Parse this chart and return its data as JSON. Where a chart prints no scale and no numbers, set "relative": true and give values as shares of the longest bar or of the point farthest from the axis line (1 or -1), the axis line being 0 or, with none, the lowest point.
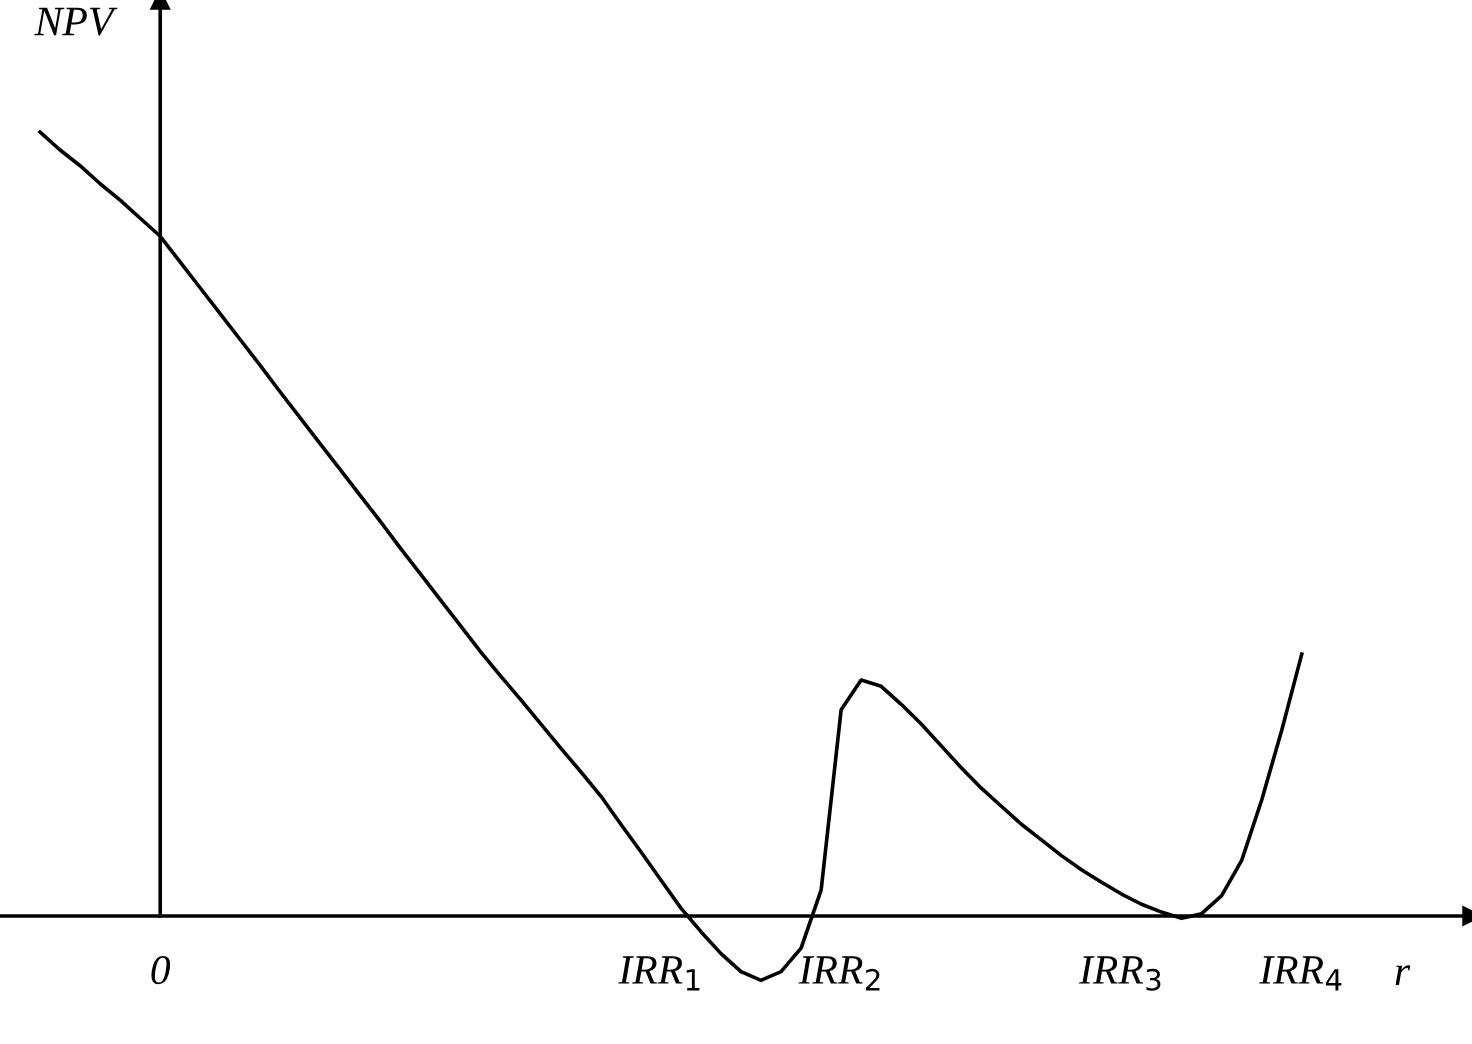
{
  "chart_data": {
    "type": "line",
    "relative": true,
    "xlabel": "r",
    "ylabel": "NPV",
    "color": "#000000",
    "line_style": "solid",
    "categories": [
      null,
      null,
      null,
      null,
      null,
      null,
      "0",
      null,
      null,
      null,
      null,
      null,
      null,
      null,
      null,
      null,
      null,
      null,
      null,
      null,
      null,
      null,
      null,
      null,
      null,
      null,
      null,
      null,
      null,
      null,
      null,
      "IRR$_{1}$",
      null,
      null,
      null,
      null,
      null,
      null,
      null,
      null,
      "IRR$_{2}$",
      null,
      null,
      null,
      null,
      null,
      null,
      null,
      null,
      null,
      null,
      null,
      null,
      null,
      "IRR$_{3}$",
      null,
      null,
      null,
      null,
      null,
      null,
      null,
      null,
      "IRR$_{4}$"
    ],
    "values": [
      1,
      0.977,
      0.957,
      0.934,
      0.913,
      0.89,
      0.867,
      0.834,
      0.801,
      0.768,
      0.735,
      0.702,
      0.668,
      0.635,
      0.602,
      0.569,
      0.536,
      0.503,
      0.469,
      0.436,
      0.403,
      0.37,
      0.337,
      0.306,
      0.276,
      0.245,
      0.214,
      0.184,
      0.153,
      0.117,
      0.082,
      0.046,
      0.01,
      -0.02,
      -0.048,
      -0.071,
      -0.082,
      -0.071,
      -0.041,
      0.033,
      0.263,
      0.301,
      0.293,
      0.27,
      0.245,
      0.217,
      0.189,
      0.163,
      0.14,
      0.117,
      0.097,
      0.077,
      0.059,
      0.043,
      0.028,
      0.015,
      0.005,
      -0.003,
      0.003,
      0.026,
      0.071,
      0.148,
      0.237,
      0.334
    ]
  }
}
